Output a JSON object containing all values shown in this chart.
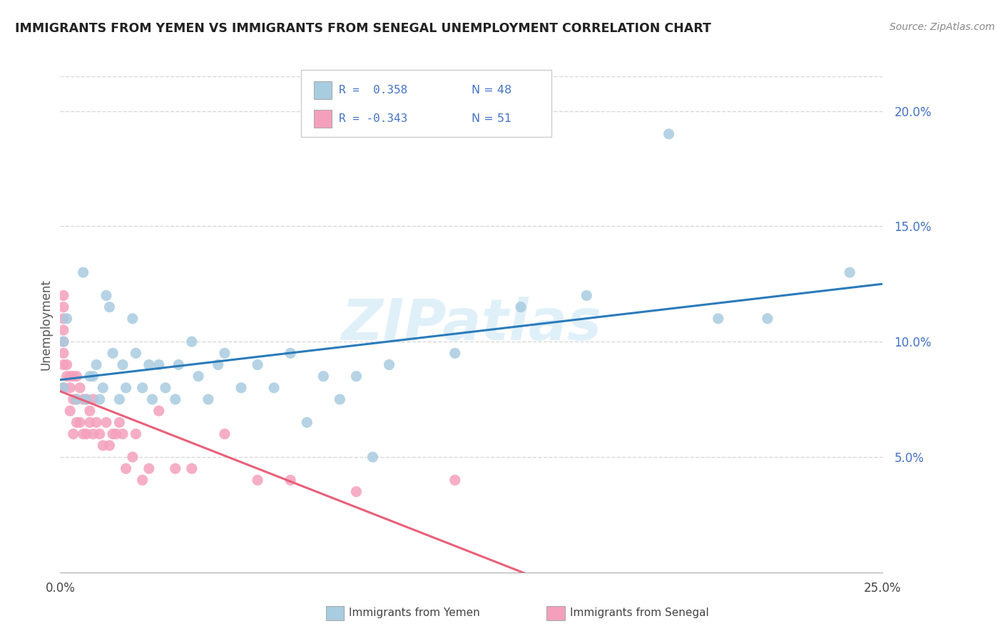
{
  "title": "IMMIGRANTS FROM YEMEN VS IMMIGRANTS FROM SENEGAL UNEMPLOYMENT CORRELATION CHART",
  "source": "Source: ZipAtlas.com",
  "ylabel": "Unemployment",
  "yticks": [
    0.05,
    0.1,
    0.15,
    0.2
  ],
  "ytick_labels": [
    "5.0%",
    "10.0%",
    "15.0%",
    "20.0%"
  ],
  "xlim": [
    0.0,
    0.25
  ],
  "ylim": [
    0.0,
    0.215
  ],
  "watermark": "ZIPatlas",
  "legend_r_yemen": "R =  0.358",
  "legend_n_yemen": "N = 48",
  "legend_r_senegal": "R = -0.343",
  "legend_n_senegal": "N = 51",
  "legend_label_yemen": "Immigrants from Yemen",
  "legend_label_senegal": "Immigrants from Senegal",
  "color_yemen": "#a8cce0",
  "color_senegal": "#f4a0bc",
  "trendline_color_yemen": "#2b7bba",
  "trendline_color_senegal": "#e8607a",
  "background_color": "#ffffff",
  "grid_color": "#d8d8d8",
  "yemen_x": [
    0.001,
    0.001,
    0.002,
    0.005,
    0.007,
    0.008,
    0.009,
    0.01,
    0.011,
    0.012,
    0.013,
    0.014,
    0.015,
    0.016,
    0.018,
    0.019,
    0.02,
    0.022,
    0.023,
    0.025,
    0.027,
    0.028,
    0.03,
    0.032,
    0.035,
    0.036,
    0.04,
    0.042,
    0.045,
    0.048,
    0.05,
    0.055,
    0.06,
    0.065,
    0.07,
    0.075,
    0.08,
    0.085,
    0.09,
    0.095,
    0.1,
    0.12,
    0.14,
    0.16,
    0.185,
    0.2,
    0.215,
    0.24
  ],
  "yemen_y": [
    0.08,
    0.1,
    0.11,
    0.075,
    0.13,
    0.075,
    0.085,
    0.085,
    0.09,
    0.075,
    0.08,
    0.12,
    0.115,
    0.095,
    0.075,
    0.09,
    0.08,
    0.11,
    0.095,
    0.08,
    0.09,
    0.075,
    0.09,
    0.08,
    0.075,
    0.09,
    0.1,
    0.085,
    0.075,
    0.09,
    0.095,
    0.08,
    0.09,
    0.08,
    0.095,
    0.065,
    0.085,
    0.075,
    0.085,
    0.05,
    0.09,
    0.095,
    0.115,
    0.12,
    0.19,
    0.11,
    0.11,
    0.13
  ],
  "senegal_x": [
    0.001,
    0.001,
    0.001,
    0.001,
    0.001,
    0.001,
    0.001,
    0.001,
    0.002,
    0.002,
    0.003,
    0.003,
    0.003,
    0.004,
    0.004,
    0.004,
    0.005,
    0.005,
    0.005,
    0.006,
    0.006,
    0.007,
    0.007,
    0.008,
    0.008,
    0.009,
    0.009,
    0.01,
    0.01,
    0.011,
    0.012,
    0.013,
    0.014,
    0.015,
    0.016,
    0.017,
    0.018,
    0.019,
    0.02,
    0.022,
    0.023,
    0.025,
    0.027,
    0.03,
    0.035,
    0.04,
    0.05,
    0.06,
    0.07,
    0.09,
    0.12
  ],
  "senegal_y": [
    0.08,
    0.09,
    0.095,
    0.1,
    0.105,
    0.11,
    0.115,
    0.12,
    0.085,
    0.09,
    0.07,
    0.08,
    0.085,
    0.06,
    0.075,
    0.085,
    0.065,
    0.075,
    0.085,
    0.065,
    0.08,
    0.06,
    0.075,
    0.06,
    0.075,
    0.065,
    0.07,
    0.06,
    0.075,
    0.065,
    0.06,
    0.055,
    0.065,
    0.055,
    0.06,
    0.06,
    0.065,
    0.06,
    0.045,
    0.05,
    0.06,
    0.04,
    0.045,
    0.07,
    0.045,
    0.045,
    0.06,
    0.04,
    0.04,
    0.035,
    0.04
  ]
}
